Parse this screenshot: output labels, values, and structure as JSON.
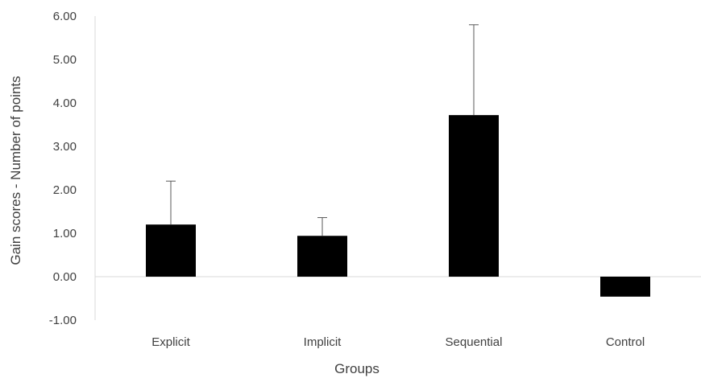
{
  "chart_data": {
    "type": "bar",
    "title": "",
    "xlabel": "Groups",
    "ylabel": "Gain scores - Number of points",
    "categories": [
      "Explicit",
      "Implicit",
      "Sequential",
      "Control"
    ],
    "values": [
      1.2,
      0.94,
      3.72,
      -0.46
    ],
    "error_bars_upper": [
      2.2,
      1.36,
      5.8,
      -0.46
    ],
    "ylim": [
      -1.0,
      6.0
    ],
    "yticks": [
      6.0,
      5.0,
      4.0,
      3.0,
      2.0,
      1.0,
      0.0,
      -1.0
    ],
    "ytick_labels": [
      "6.00",
      "5.00",
      "4.00",
      "3.00",
      "2.00",
      "1.00",
      "0.00",
      "-1.00"
    ],
    "grid": false,
    "legend": "none",
    "colors": {
      "bar": "#000000",
      "axis": "#d9d9d9",
      "error_bar": "#595959",
      "text": "#404040"
    }
  }
}
